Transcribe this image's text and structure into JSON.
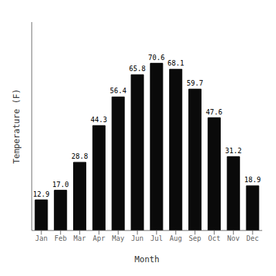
{
  "chart_data": {
    "type": "bar",
    "categories": [
      "Jan",
      "Feb",
      "Mar",
      "Apr",
      "May",
      "Jun",
      "Jul",
      "Aug",
      "Sep",
      "Oct",
      "Nov",
      "Dec"
    ],
    "values": [
      12.9,
      17.0,
      28.8,
      44.3,
      56.4,
      65.8,
      70.6,
      68.1,
      59.7,
      47.6,
      31.2,
      18.9
    ],
    "value_labels": [
      "12.9",
      "17.0",
      "28.8",
      "44.3",
      "56.4",
      "65.8",
      "70.6",
      "68.1",
      "59.7",
      "47.6",
      "31.2",
      "18.9"
    ],
    "color": "#0a0a0a",
    "x_label": "Month",
    "y_label": "Temperature (F)",
    "ylim": [
      0,
      88
    ],
    "yticks": [],
    "grid": false,
    "data_labels": true,
    "tick_labels": "x"
  }
}
